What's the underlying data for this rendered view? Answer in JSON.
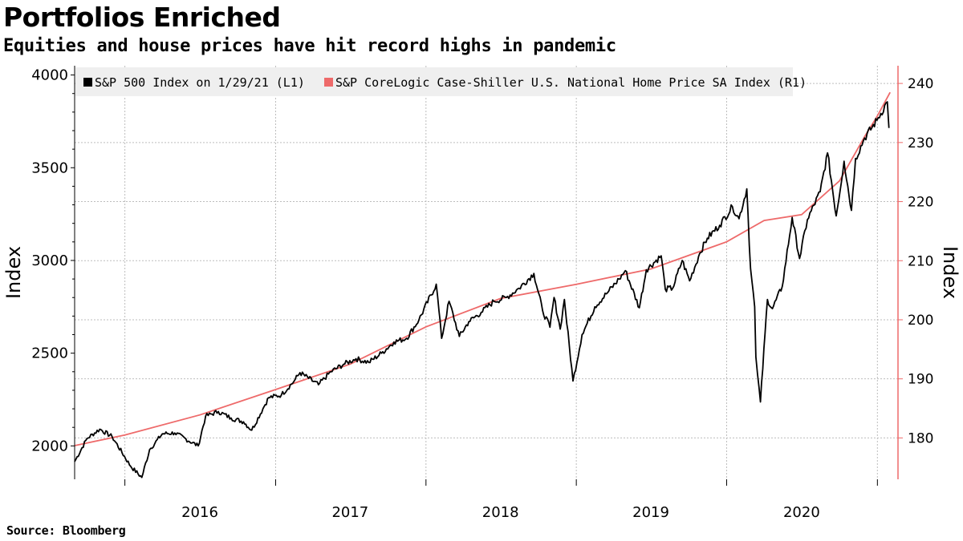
{
  "title": "Portfolios Enriched",
  "subtitle": "Equities and house prices have hit record highs in pandemic",
  "source": "Source: Bloomberg",
  "colors": {
    "sp500": "#000000",
    "home": "#ee6a6a",
    "right_axis": "#ee6a6a",
    "grid": "#bdbdbd",
    "legend_bg": "#efefef"
  },
  "chart_data": {
    "type": "line",
    "x_type": "date",
    "xlim": [
      "2015-09-01",
      "2021-02-20"
    ],
    "x_tick_labels": [
      "2016",
      "2017",
      "2018",
      "2019",
      "2020"
    ],
    "x_tick_positions": [
      "2016-07-01",
      "2017-07-01",
      "2018-07-01",
      "2019-07-01",
      "2020-07-01"
    ],
    "x_gridlines": [
      "2016-01-01",
      "2017-01-01",
      "2018-01-01",
      "2019-01-01",
      "2020-01-01",
      "2021-01-01"
    ],
    "left_axis": {
      "label": "Index",
      "ylim": [
        1820,
        4050
      ],
      "ticks": [
        2000,
        2500,
        3000,
        3500,
        4000
      ]
    },
    "right_axis": {
      "label": "Index",
      "ylim": [
        173,
        243
      ],
      "ticks": [
        180,
        190,
        200,
        210,
        220,
        230,
        240
      ]
    },
    "grid": true,
    "legend": "top-left",
    "series": [
      {
        "name": "S&P 500 Index on 1/29/21 (L1)",
        "axis": "left",
        "points": [
          [
            "2015-09-01",
            1915
          ],
          [
            "2015-10-01",
            2040
          ],
          [
            "2015-11-01",
            2090
          ],
          [
            "2015-12-01",
            2050
          ],
          [
            "2016-01-15",
            1890
          ],
          [
            "2016-02-11",
            1830
          ],
          [
            "2016-03-01",
            1980
          ],
          [
            "2016-04-01",
            2065
          ],
          [
            "2016-05-01",
            2070
          ],
          [
            "2016-06-27",
            2000
          ],
          [
            "2016-07-15",
            2160
          ],
          [
            "2016-08-15",
            2185
          ],
          [
            "2016-09-15",
            2150
          ],
          [
            "2016-10-15",
            2130
          ],
          [
            "2016-11-04",
            2085
          ],
          [
            "2016-12-01",
            2200
          ],
          [
            "2016-12-15",
            2260
          ],
          [
            "2017-01-15",
            2275
          ],
          [
            "2017-02-15",
            2350
          ],
          [
            "2017-03-01",
            2395
          ],
          [
            "2017-04-15",
            2330
          ],
          [
            "2017-05-15",
            2400
          ],
          [
            "2017-06-15",
            2440
          ],
          [
            "2017-07-15",
            2470
          ],
          [
            "2017-08-15",
            2450
          ],
          [
            "2017-09-15",
            2500
          ],
          [
            "2017-10-15",
            2560
          ],
          [
            "2017-11-15",
            2580
          ],
          [
            "2017-12-15",
            2680
          ],
          [
            "2018-01-26",
            2872
          ],
          [
            "2018-02-08",
            2580
          ],
          [
            "2018-02-26",
            2780
          ],
          [
            "2018-03-23",
            2590
          ],
          [
            "2018-04-15",
            2670
          ],
          [
            "2018-05-15",
            2720
          ],
          [
            "2018-06-15",
            2780
          ],
          [
            "2018-07-15",
            2800
          ],
          [
            "2018-08-15",
            2850
          ],
          [
            "2018-09-20",
            2930
          ],
          [
            "2018-10-11",
            2730
          ],
          [
            "2018-10-29",
            2640
          ],
          [
            "2018-11-08",
            2800
          ],
          [
            "2018-11-23",
            2630
          ],
          [
            "2018-12-03",
            2790
          ],
          [
            "2018-12-24",
            2350
          ],
          [
            "2019-01-15",
            2600
          ],
          [
            "2019-02-15",
            2750
          ],
          [
            "2019-03-15",
            2820
          ],
          [
            "2019-04-15",
            2900
          ],
          [
            "2019-04-30",
            2945
          ],
          [
            "2019-06-03",
            2745
          ],
          [
            "2019-06-20",
            2950
          ],
          [
            "2019-07-26",
            3025
          ],
          [
            "2019-08-05",
            2845
          ],
          [
            "2019-08-23",
            2850
          ],
          [
            "2019-09-15",
            3000
          ],
          [
            "2019-10-03",
            2890
          ],
          [
            "2019-10-28",
            3040
          ],
          [
            "2019-11-15",
            3120
          ],
          [
            "2019-12-15",
            3190
          ],
          [
            "2020-01-15",
            3290
          ],
          [
            "2020-01-31",
            3225
          ],
          [
            "2020-02-19",
            3386
          ],
          [
            "2020-02-28",
            2955
          ],
          [
            "2020-03-09",
            2750
          ],
          [
            "2020-03-12",
            2480
          ],
          [
            "2020-03-16",
            2385
          ],
          [
            "2020-03-23",
            2237
          ],
          [
            "2020-04-09",
            2790
          ],
          [
            "2020-04-21",
            2740
          ],
          [
            "2020-05-15",
            2860
          ],
          [
            "2020-06-08",
            3232
          ],
          [
            "2020-06-26",
            3010
          ],
          [
            "2020-07-15",
            3220
          ],
          [
            "2020-08-15",
            3370
          ],
          [
            "2020-09-02",
            3580
          ],
          [
            "2020-09-23",
            3240
          ],
          [
            "2020-10-12",
            3535
          ],
          [
            "2020-10-30",
            3270
          ],
          [
            "2020-11-09",
            3550
          ],
          [
            "2020-12-01",
            3660
          ],
          [
            "2020-12-31",
            3756
          ],
          [
            "2021-01-25",
            3855
          ],
          [
            "2021-01-29",
            3714
          ]
        ]
      },
      {
        "name": "S&P CoreLogic Case-Shiller U.S. National Home Price SA Index (R1)",
        "axis": "right",
        "points": [
          [
            "2015-09-01",
            178.7
          ],
          [
            "2016-01-01",
            180.5
          ],
          [
            "2016-07-01",
            183.9
          ],
          [
            "2017-01-01",
            188.2
          ],
          [
            "2017-07-01",
            192.5
          ],
          [
            "2018-01-01",
            198.8
          ],
          [
            "2018-07-01",
            203.6
          ],
          [
            "2019-01-01",
            206.0
          ],
          [
            "2019-07-01",
            208.6
          ],
          [
            "2020-01-01",
            213.2
          ],
          [
            "2020-04-01",
            216.8
          ],
          [
            "2020-07-01",
            217.8
          ],
          [
            "2020-10-01",
            223.5
          ],
          [
            "2020-12-01",
            231.0
          ],
          [
            "2021-01-01",
            234.5
          ],
          [
            "2021-02-01",
            238.5
          ]
        ]
      }
    ]
  }
}
